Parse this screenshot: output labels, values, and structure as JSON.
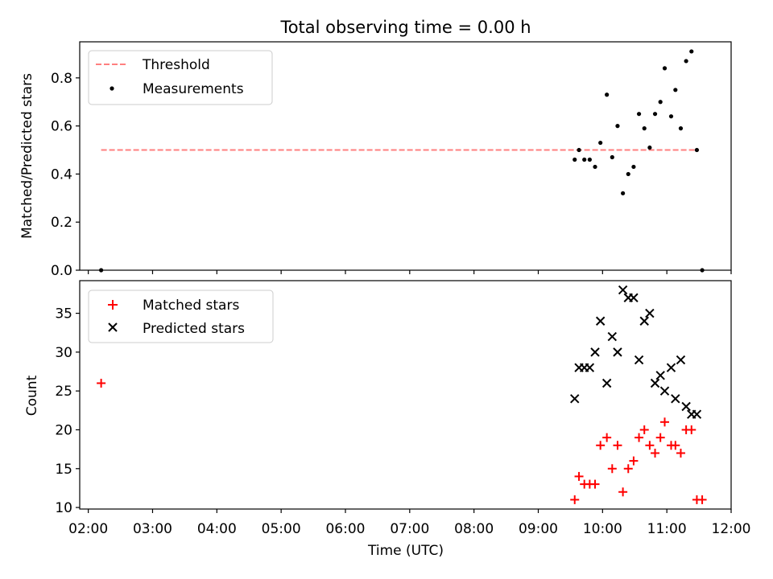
{
  "figure": {
    "title": "Total observing time = 0.00 h"
  },
  "chart_data": [
    {
      "type": "scatter",
      "panel": "top",
      "ylabel": "Matched/Predicted stars",
      "xlabel": "",
      "xlim": [
        "01:52",
        "12:00"
      ],
      "ylim": [
        0,
        0.95
      ],
      "yticks": [
        "0.0",
        "0.2",
        "0.4",
        "0.6",
        "0.8"
      ],
      "grid": false,
      "legend_placement": "top-left",
      "threshold": {
        "name": "Threshold",
        "value": 0.5,
        "x_start": "02:12",
        "x_end": "11:30",
        "color": "#ff7f7f",
        "style": "dashed"
      },
      "series": [
        {
          "name": "Measurements",
          "marker": "dot",
          "color": "#000000",
          "points": [
            {
              "x": "02:12",
              "y": 0.0
            },
            {
              "x": "09:34",
              "y": 0.46
            },
            {
              "x": "09:38",
              "y": 0.5
            },
            {
              "x": "09:43",
              "y": 0.46
            },
            {
              "x": "09:48",
              "y": 0.46
            },
            {
              "x": "09:53",
              "y": 0.43
            },
            {
              "x": "09:58",
              "y": 0.53
            },
            {
              "x": "10:04",
              "y": 0.73
            },
            {
              "x": "10:09",
              "y": 0.47
            },
            {
              "x": "10:14",
              "y": 0.6
            },
            {
              "x": "10:19",
              "y": 0.32
            },
            {
              "x": "10:24",
              "y": 0.4
            },
            {
              "x": "10:29",
              "y": 0.43
            },
            {
              "x": "10:34",
              "y": 0.65
            },
            {
              "x": "10:39",
              "y": 0.59
            },
            {
              "x": "10:44",
              "y": 0.51
            },
            {
              "x": "10:49",
              "y": 0.65
            },
            {
              "x": "10:54",
              "y": 0.7
            },
            {
              "x": "10:58",
              "y": 0.84
            },
            {
              "x": "11:04",
              "y": 0.64
            },
            {
              "x": "11:08",
              "y": 0.75
            },
            {
              "x": "11:13",
              "y": 0.59
            },
            {
              "x": "11:18",
              "y": 0.87
            },
            {
              "x": "11:23",
              "y": 0.91
            },
            {
              "x": "11:28",
              "y": 0.5
            },
            {
              "x": "11:33",
              "y": 0.0
            }
          ]
        }
      ]
    },
    {
      "type": "scatter",
      "panel": "bottom",
      "ylabel": "Count",
      "xlabel": "Time (UTC)",
      "xlim": [
        "01:52",
        "12:00"
      ],
      "ylim": [
        9.8,
        39.2
      ],
      "yticks": [
        "10",
        "15",
        "20",
        "25",
        "30",
        "35"
      ],
      "xticks": [
        "02:00",
        "03:00",
        "04:00",
        "05:00",
        "06:00",
        "07:00",
        "08:00",
        "09:00",
        "10:00",
        "11:00",
        "12:00"
      ],
      "grid": false,
      "legend_placement": "top-left",
      "series": [
        {
          "name": "Matched stars",
          "marker": "plus",
          "color": "#ff0000",
          "points": [
            {
              "x": "02:12",
              "y": 26
            },
            {
              "x": "09:34",
              "y": 11
            },
            {
              "x": "09:38",
              "y": 14
            },
            {
              "x": "09:43",
              "y": 13
            },
            {
              "x": "09:48",
              "y": 13
            },
            {
              "x": "09:53",
              "y": 13
            },
            {
              "x": "09:58",
              "y": 18
            },
            {
              "x": "10:04",
              "y": 19
            },
            {
              "x": "10:09",
              "y": 15
            },
            {
              "x": "10:14",
              "y": 18
            },
            {
              "x": "10:19",
              "y": 12
            },
            {
              "x": "10:24",
              "y": 15
            },
            {
              "x": "10:29",
              "y": 16
            },
            {
              "x": "10:34",
              "y": 19
            },
            {
              "x": "10:39",
              "y": 20
            },
            {
              "x": "10:44",
              "y": 18
            },
            {
              "x": "10:49",
              "y": 17
            },
            {
              "x": "10:54",
              "y": 19
            },
            {
              "x": "10:58",
              "y": 21
            },
            {
              "x": "11:04",
              "y": 18
            },
            {
              "x": "11:08",
              "y": 18
            },
            {
              "x": "11:13",
              "y": 17
            },
            {
              "x": "11:18",
              "y": 20
            },
            {
              "x": "11:23",
              "y": 20
            },
            {
              "x": "11:28",
              "y": 11
            },
            {
              "x": "11:33",
              "y": 11
            }
          ]
        },
        {
          "name": "Predicted stars",
          "marker": "x",
          "color": "#000000",
          "points": [
            {
              "x": "09:34",
              "y": 24
            },
            {
              "x": "09:38",
              "y": 28
            },
            {
              "x": "09:43",
              "y": 28
            },
            {
              "x": "09:48",
              "y": 28
            },
            {
              "x": "09:53",
              "y": 30
            },
            {
              "x": "09:58",
              "y": 34
            },
            {
              "x": "10:04",
              "y": 26
            },
            {
              "x": "10:09",
              "y": 32
            },
            {
              "x": "10:14",
              "y": 30
            },
            {
              "x": "10:19",
              "y": 38
            },
            {
              "x": "10:24",
              "y": 37
            },
            {
              "x": "10:29",
              "y": 37
            },
            {
              "x": "10:34",
              "y": 29
            },
            {
              "x": "10:39",
              "y": 34
            },
            {
              "x": "10:44",
              "y": 35
            },
            {
              "x": "10:49",
              "y": 26
            },
            {
              "x": "10:54",
              "y": 27
            },
            {
              "x": "10:58",
              "y": 25
            },
            {
              "x": "11:04",
              "y": 28
            },
            {
              "x": "11:08",
              "y": 24
            },
            {
              "x": "11:13",
              "y": 29
            },
            {
              "x": "11:18",
              "y": 23
            },
            {
              "x": "11:23",
              "y": 22
            },
            {
              "x": "11:28",
              "y": 22
            }
          ]
        }
      ]
    }
  ]
}
